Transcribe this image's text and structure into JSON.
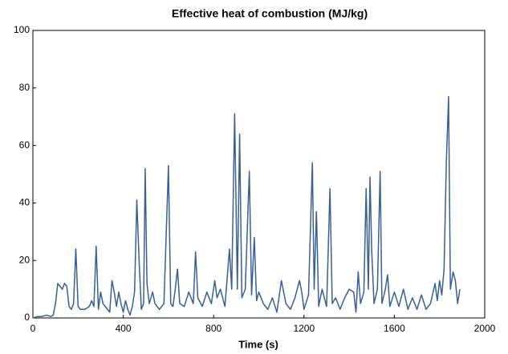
{
  "chart_data": {
    "type": "line",
    "title": "Effective heat of combustion (MJ/kg)",
    "x_label": "Time (s)",
    "x": [
      0,
      20,
      40,
      60,
      80,
      90,
      100,
      110,
      120,
      130,
      140,
      150,
      160,
      170,
      180,
      190,
      200,
      210,
      230,
      250,
      260,
      270,
      280,
      290,
      300,
      310,
      320,
      340,
      350,
      360,
      370,
      380,
      390,
      400,
      410,
      420,
      430,
      440,
      450,
      460,
      470,
      480,
      490,
      497,
      505,
      515,
      530,
      540,
      560,
      580,
      600,
      610,
      620,
      630,
      640,
      650,
      670,
      690,
      710,
      720,
      730,
      750,
      770,
      790,
      805,
      815,
      830,
      850,
      870,
      880,
      893,
      905,
      915,
      925,
      940,
      958,
      968,
      980,
      990,
      1000,
      1020,
      1040,
      1060,
      1080,
      1100,
      1110,
      1120,
      1140,
      1160,
      1180,
      1190,
      1200,
      1220,
      1237,
      1245,
      1255,
      1265,
      1280,
      1300,
      1315,
      1325,
      1340,
      1360,
      1380,
      1400,
      1420,
      1430,
      1440,
      1450,
      1465,
      1475,
      1485,
      1492,
      1500,
      1510,
      1525,
      1537,
      1545,
      1560,
      1570,
      1580,
      1600,
      1620,
      1640,
      1660,
      1680,
      1700,
      1720,
      1740,
      1760,
      1780,
      1790,
      1800,
      1810,
      1820,
      1830,
      1840,
      1848,
      1860,
      1870,
      1880,
      1890
    ],
    "series": [
      {
        "color": "#3a5f95",
        "values": [
          0,
          0.5,
          0.5,
          1,
          0.5,
          1,
          5,
          12,
          11,
          10,
          12,
          11,
          4,
          3,
          5,
          24,
          4,
          3,
          3,
          4,
          6,
          4,
          25,
          3,
          9,
          5,
          4,
          2,
          13,
          9,
          4,
          9,
          5,
          2,
          6,
          3,
          1,
          4,
          9,
          41,
          20,
          3,
          5,
          52,
          12,
          5,
          9,
          5,
          3,
          5,
          53,
          5,
          4,
          10,
          17,
          5,
          4,
          9,
          5,
          23,
          7,
          4,
          9,
          5,
          13,
          7,
          10,
          4,
          24,
          10,
          71,
          10,
          64,
          7,
          10,
          51,
          8,
          28,
          6,
          9,
          5,
          3,
          7,
          2,
          13,
          9,
          5,
          3,
          7,
          13,
          9,
          3,
          8,
          54,
          10,
          37,
          4,
          10,
          4,
          45,
          5,
          7,
          3,
          7,
          10,
          9,
          2,
          16,
          5,
          9,
          45,
          10,
          49,
          23,
          5,
          10,
          51,
          5,
          10,
          15,
          4,
          9,
          4,
          10,
          3,
          7,
          3,
          8,
          3,
          5,
          12,
          6,
          13,
          8,
          17,
          54,
          77,
          10,
          16,
          13,
          5,
          10
        ]
      }
    ],
    "xlim": [
      0,
      2000
    ],
    "xticks": [
      0,
      400,
      800,
      1200,
      1600,
      2000
    ],
    "ylim": [
      0,
      100
    ],
    "yticks": [
      0,
      20,
      40,
      60,
      80,
      100
    ]
  }
}
